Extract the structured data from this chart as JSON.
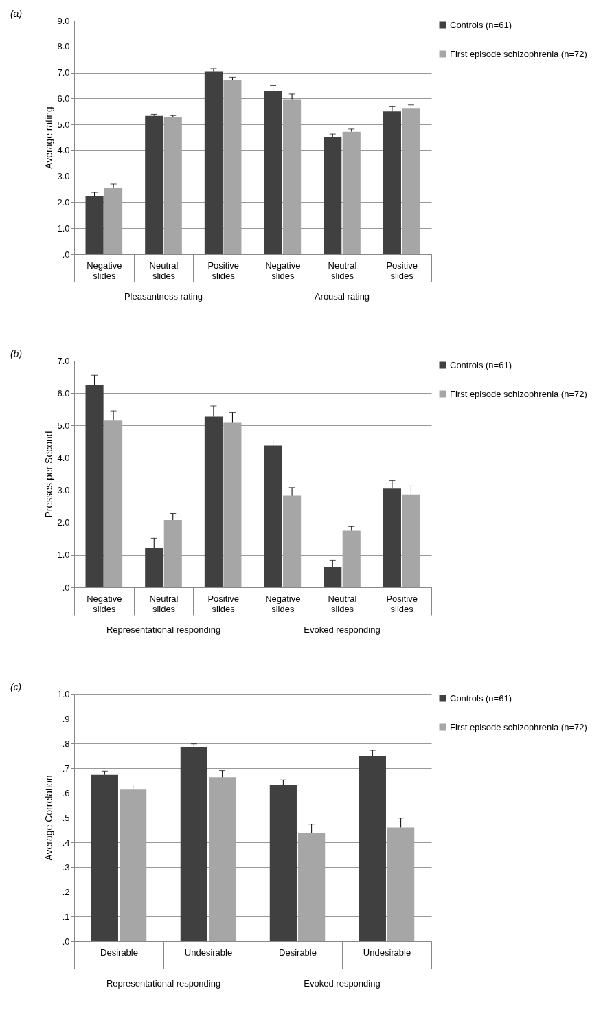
{
  "chart_data": [
    {
      "type": "bar",
      "title": "(a)",
      "ylabel": "Average rating",
      "categories": [
        "Negative slides",
        "Neutral slides",
        "Positive slides",
        "Negative slides",
        "Neutral slides",
        "Positive slides"
      ],
      "annotations": [
        "Pleasantness rating",
        "Arousal rating"
      ],
      "ylim": [
        0,
        9
      ],
      "yticks": [
        {
          "value": 0,
          "label": ".0"
        },
        {
          "value": 1,
          "label": "1.0"
        },
        {
          "value": 2,
          "label": "2.0"
        },
        {
          "value": 3,
          "label": "3.0"
        },
        {
          "value": 4,
          "label": "4.0"
        },
        {
          "value": 5,
          "label": "5.0"
        },
        {
          "value": 6,
          "label": "6.0"
        },
        {
          "value": 7,
          "label": "7.0"
        },
        {
          "value": 8,
          "label": "8.0"
        },
        {
          "value": 9,
          "label": "9.0"
        }
      ],
      "grid": "y",
      "legend": "right",
      "series": [
        {
          "name": "Controls (n=61)",
          "color": "#404040",
          "values": [
            2.25,
            5.33,
            7.03,
            6.3,
            4.5,
            5.5
          ],
          "errors": [
            [
              2.25,
              2.38
            ],
            [
              5.33,
              5.39
            ],
            [
              7.03,
              7.15
            ],
            [
              6.3,
              6.5
            ],
            [
              4.5,
              4.63
            ],
            [
              5.5,
              5.68
            ]
          ]
        },
        {
          "name": "First episode schizophrenia (n=72)",
          "color": "#a6a6a6",
          "values": [
            2.57,
            5.27,
            6.7,
            5.97,
            4.72,
            5.63
          ],
          "errors": [
            [
              2.57,
              2.7
            ],
            [
              5.27,
              5.34
            ],
            [
              6.7,
              6.82
            ],
            [
              5.97,
              6.17
            ],
            [
              4.72,
              4.82
            ],
            [
              5.63,
              5.75
            ]
          ]
        }
      ]
    },
    {
      "type": "bar",
      "title": "(b)",
      "ylabel": "Presses per Second",
      "categories": [
        "Negative slides",
        "Neutral slides",
        "Positive slides",
        "Negative slides",
        "Neutral slides",
        "Positive slides"
      ],
      "annotations": [
        "Representational responding",
        "Evoked responding"
      ],
      "ylim": [
        0,
        7
      ],
      "yticks": [
        {
          "value": 0,
          "label": ".0"
        },
        {
          "value": 1,
          "label": "1.0"
        },
        {
          "value": 2,
          "label": "2.0"
        },
        {
          "value": 3,
          "label": "3.0"
        },
        {
          "value": 4,
          "label": "4.0"
        },
        {
          "value": 5,
          "label": "5.0"
        },
        {
          "value": 6,
          "label": "6.0"
        },
        {
          "value": 7,
          "label": "7.0"
        }
      ],
      "grid": "y",
      "legend": "right",
      "series": [
        {
          "name": "Controls (n=61)",
          "color": "#404040",
          "values": [
            6.25,
            1.22,
            5.27,
            4.38,
            0.62,
            3.05
          ],
          "errors": [
            [
              6.25,
              6.55
            ],
            [
              1.22,
              1.52
            ],
            [
              5.27,
              5.6
            ],
            [
              4.38,
              4.55
            ],
            [
              0.62,
              0.84
            ],
            [
              3.05,
              3.3
            ]
          ]
        },
        {
          "name": "First episode schizophrenia (n=72)",
          "color": "#a6a6a6",
          "values": [
            5.15,
            2.08,
            5.1,
            2.83,
            1.75,
            2.87
          ],
          "errors": [
            [
              5.15,
              5.45
            ],
            [
              2.08,
              2.28
            ],
            [
              5.1,
              5.4
            ],
            [
              2.83,
              3.08
            ],
            [
              1.75,
              1.88
            ],
            [
              2.87,
              3.13
            ]
          ]
        }
      ]
    },
    {
      "type": "bar",
      "title": "(c)",
      "ylabel": "Average Correlation",
      "categories": [
        "Desirable",
        "Undesirable",
        "Desirable",
        "Undesirable"
      ],
      "annotations": [
        "Representational responding",
        "Evoked responding"
      ],
      "ylim": [
        0,
        1
      ],
      "yticks": [
        {
          "value": 0,
          "label": ".0"
        },
        {
          "value": 0.1,
          "label": ".1"
        },
        {
          "value": 0.2,
          "label": ".2"
        },
        {
          "value": 0.3,
          "label": ".3"
        },
        {
          "value": 0.4,
          "label": ".4"
        },
        {
          "value": 0.5,
          "label": ".5"
        },
        {
          "value": 0.6,
          "label": ".6"
        },
        {
          "value": 0.7,
          "label": ".7"
        },
        {
          "value": 0.8,
          "label": ".8"
        },
        {
          "value": 0.9,
          "label": ".9"
        },
        {
          "value": 1,
          "label": "1.0"
        }
      ],
      "grid": "y",
      "legend": "right",
      "series": [
        {
          "name": "Controls (n=61)",
          "color": "#404040",
          "values": [
            0.673,
            0.785,
            0.633,
            0.748
          ],
          "errors": [
            [
              0.673,
              0.688
            ],
            [
              0.785,
              0.798
            ],
            [
              0.633,
              0.652
            ],
            [
              0.748,
              0.772
            ]
          ]
        },
        {
          "name": "First episode schizophrenia (n=72)",
          "color": "#a6a6a6",
          "values": [
            0.613,
            0.663,
            0.437,
            0.46
          ],
          "errors": [
            [
              0.613,
              0.632
            ],
            [
              0.663,
              0.69
            ],
            [
              0.437,
              0.473
            ],
            [
              0.46,
              0.498
            ]
          ]
        }
      ]
    }
  ]
}
